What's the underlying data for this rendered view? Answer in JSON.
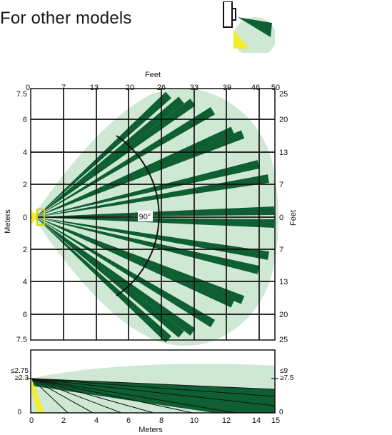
{
  "header": {
    "title": "For other models"
  },
  "top_view": {
    "feet_axis_title": "Feet",
    "meters_axis_title": "Meters",
    "right_axis_title": "Feet",
    "feet_top_ticks": [
      "0",
      "7",
      "13",
      "20",
      "26",
      "33",
      "39",
      "46",
      "50"
    ],
    "meter_left_ticks": [
      "7.5",
      "6",
      "4",
      "2",
      "0",
      "2",
      "4",
      "6",
      "7.5"
    ],
    "feet_right_ticks": [
      "25",
      "20",
      "13",
      "7",
      "0",
      "7",
      "13",
      "20",
      "25"
    ],
    "angle_label": "90°"
  },
  "side_view": {
    "left_top_label": "≤2.75",
    "left_mid_label": "≥2.3",
    "left_zero_label": "0",
    "right_top_label": "≤9",
    "right_mid_label": "≥7.5",
    "right_zero_label": "0",
    "bottom_ticks": [
      "0",
      "2",
      "4",
      "6",
      "8",
      "10",
      "12",
      "14",
      "15"
    ],
    "bottom_axis_title": "Meters"
  },
  "colors": {
    "light_zone": "#cfe8d4",
    "dark_zone": "#0e6032",
    "sensor_yellow": "#f2ee2c",
    "grid": "#111111"
  }
}
